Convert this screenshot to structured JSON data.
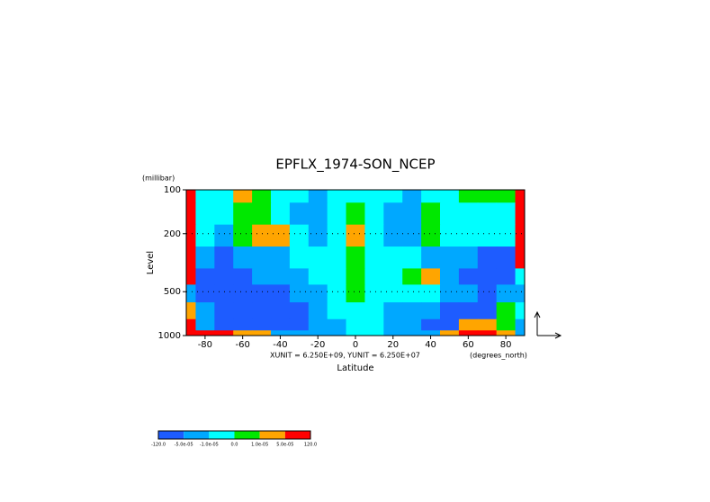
{
  "chart_data": {
    "type": "contour",
    "title": "EPFLX_1974-SON_NCEP",
    "x_label": "Latitude",
    "x_unit": "(degrees_north)",
    "y_label": "Level",
    "y_unit": "(millibar)",
    "note": "XUNIT = 6.250E+09, YUNIT = 6.250E+07",
    "xlim": [
      -90,
      90
    ],
    "xticks": [
      -80,
      -60,
      -40,
      -20,
      0,
      20,
      40,
      60,
      80
    ],
    "ylim": [
      1000,
      100
    ],
    "yticks": [
      100,
      200,
      500,
      1000
    ],
    "log_y": true,
    "x": [
      -90,
      -80,
      -70,
      -60,
      -50,
      -40,
      -30,
      -20,
      -10,
      0,
      10,
      20,
      30,
      40,
      50,
      60,
      70,
      80,
      90
    ],
    "y": [
      100,
      150,
      200,
      300,
      400,
      500,
      700,
      850,
      1000
    ],
    "z": [
      [
        0.0001,
        -5e-06,
        -5e-06,
        3e-05,
        5e-06,
        -5e-06,
        -5e-06,
        -3e-05,
        -5e-06,
        -5e-06,
        -5e-06,
        -5e-06,
        -3e-05,
        -5e-06,
        -5e-06,
        5e-06,
        5e-06,
        5e-06,
        0.0001
      ],
      [
        0.0001,
        -5e-06,
        -5e-06,
        5e-06,
        5e-06,
        -5e-06,
        -3e-05,
        -3e-05,
        -5e-06,
        5e-06,
        -5e-06,
        -3e-05,
        -3e-05,
        5e-06,
        -5e-06,
        -5e-06,
        -5e-06,
        -5e-06,
        0.0001
      ],
      [
        0.0001,
        -5e-06,
        -3e-05,
        5e-06,
        3e-05,
        3e-05,
        -5e-06,
        -3e-05,
        -5e-06,
        3e-05,
        -5e-06,
        -3e-05,
        -3e-05,
        5e-06,
        -5e-06,
        -5e-06,
        -5e-06,
        -5e-06,
        0.0001
      ],
      [
        0.0001,
        -3e-05,
        -0.0001,
        -3e-05,
        -3e-05,
        -3e-05,
        -5e-06,
        -5e-06,
        -5e-06,
        5e-06,
        -5e-06,
        -5e-06,
        -5e-06,
        -3e-05,
        -3e-05,
        -3e-05,
        -0.0001,
        -0.0001,
        0.0001
      ],
      [
        0.0001,
        -0.0001,
        -0.0001,
        -0.0001,
        -3e-05,
        -3e-05,
        -3e-05,
        -5e-06,
        -5e-06,
        5e-06,
        -5e-06,
        -5e-06,
        5e-06,
        3e-05,
        -3e-05,
        -0.0001,
        -0.0001,
        -0.0001,
        -5e-06
      ],
      [
        -3e-05,
        -0.0001,
        -0.0001,
        -0.0001,
        -0.0001,
        -0.0001,
        -3e-05,
        -3e-05,
        -5e-06,
        5e-06,
        -5e-06,
        -5e-06,
        -5e-06,
        -5e-06,
        -3e-05,
        -3e-05,
        -0.0001,
        -3e-05,
        -3e-05
      ],
      [
        3e-05,
        -3e-05,
        -0.0001,
        -0.0001,
        -0.0001,
        -0.0001,
        -0.0001,
        -3e-05,
        -5e-06,
        -5e-06,
        -5e-06,
        -3e-05,
        -3e-05,
        -3e-05,
        -0.0001,
        -0.0001,
        -0.0001,
        5e-06,
        -5e-06
      ],
      [
        0.0001,
        -3e-05,
        -0.0001,
        -0.0001,
        -0.0001,
        -0.0001,
        -0.0001,
        -3e-05,
        -3e-05,
        -5e-06,
        -5e-06,
        -3e-05,
        -3e-05,
        -0.0001,
        -0.0001,
        3e-05,
        3e-05,
        5e-06,
        -3e-05
      ],
      [
        0.0001,
        0.0001,
        0.0001,
        3e-05,
        3e-05,
        -3e-05,
        -3e-05,
        -3e-05,
        -3e-05,
        -5e-06,
        -5e-06,
        -3e-05,
        -3e-05,
        -3e-05,
        3e-05,
        0.0001,
        0.0001,
        3e-05,
        -3e-05
      ]
    ],
    "levels": [
      {
        "value": -120,
        "label": "-120.0"
      },
      {
        "value": -5e-05,
        "label": "-5.0e-05"
      },
      {
        "value": -1e-05,
        "label": "-1.0e-05"
      },
      {
        "value": 0,
        "label": "0.0"
      },
      {
        "value": 1e-05,
        "label": "1.0e-05"
      },
      {
        "value": 5e-05,
        "label": "5.0e-05"
      },
      {
        "value": 120,
        "label": "120.0"
      }
    ],
    "colors": [
      "#1e5cff",
      "#00a8ff",
      "#00ffff",
      "#00e800",
      "#ffa500",
      "#ff0000"
    ]
  }
}
